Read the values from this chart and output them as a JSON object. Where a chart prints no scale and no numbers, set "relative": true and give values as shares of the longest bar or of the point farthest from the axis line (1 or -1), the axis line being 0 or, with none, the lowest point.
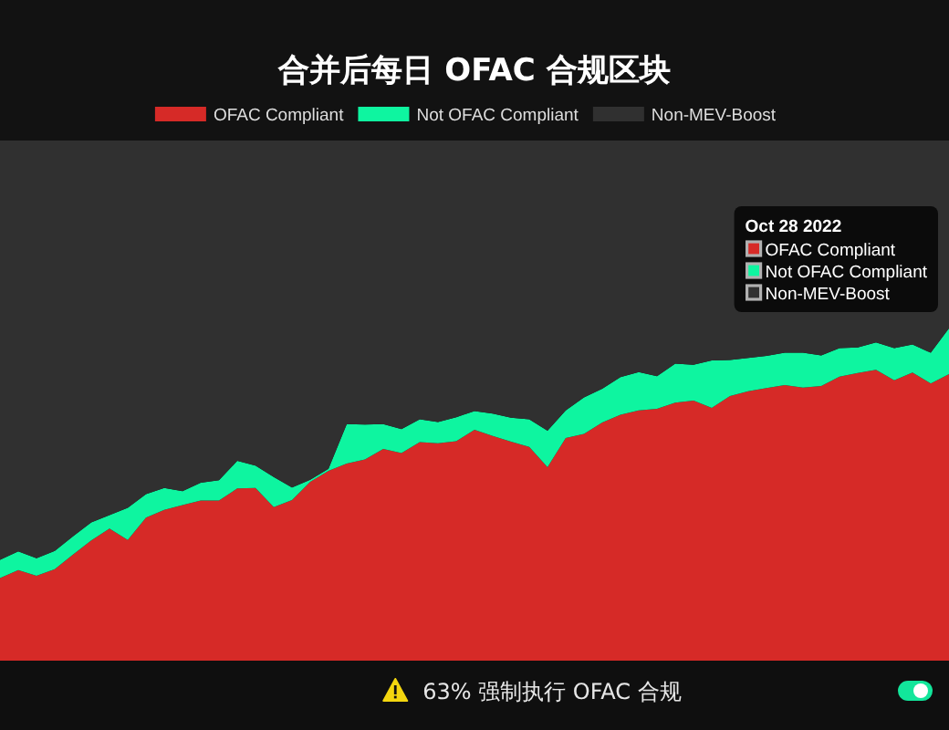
{
  "chart_data": {
    "type": "area",
    "title": "合并后每日 OFAC 合规区块",
    "categories": [
      null,
      null,
      null,
      null,
      null,
      null,
      null,
      null,
      null,
      null,
      null,
      null,
      null,
      null,
      null,
      null,
      null,
      null,
      null,
      null,
      null,
      null,
      null,
      null,
      null,
      null,
      null,
      null,
      null,
      null,
      null,
      null,
      null,
      null,
      null,
      null,
      null,
      null,
      null,
      null,
      null,
      null,
      null,
      null,
      null,
      null,
      null,
      null,
      null,
      null,
      null,
      null,
      null
    ],
    "stacked": true,
    "relative": true,
    "legend": "top",
    "series": [
      {
        "name": "OFAC Compliant",
        "color": "#d62a27",
        "values": [
          0.159,
          0.174,
          0.163,
          0.176,
          0.204,
          0.231,
          0.254,
          0.232,
          0.275,
          0.29,
          0.299,
          0.308,
          0.308,
          0.331,
          0.332,
          0.295,
          0.309,
          0.344,
          0.365,
          0.379,
          0.387,
          0.407,
          0.399,
          0.42,
          0.418,
          0.422,
          0.444,
          0.432,
          0.421,
          0.411,
          0.372,
          0.428,
          0.436,
          0.458,
          0.473,
          0.481,
          0.484,
          0.496,
          0.5,
          0.486,
          0.509,
          0.518,
          0.524,
          0.53,
          0.525,
          0.528,
          0.546,
          0.553,
          0.559,
          0.539,
          0.554,
          0.533,
          0.551
        ]
      },
      {
        "name": "Not OFAC Compliant",
        "color": "#0ef5a0",
        "values": [
          0.035,
          0.036,
          0.034,
          0.035,
          0.035,
          0.035,
          0.026,
          0.062,
          0.045,
          0.042,
          0.027,
          0.034,
          0.039,
          0.053,
          0.043,
          0.058,
          0.024,
          0.004,
          0.004,
          0.076,
          0.067,
          0.048,
          0.046,
          0.044,
          0.041,
          0.046,
          0.036,
          0.043,
          0.046,
          0.053,
          0.07,
          0.053,
          0.07,
          0.065,
          0.072,
          0.074,
          0.063,
          0.075,
          0.069,
          0.091,
          0.069,
          0.064,
          0.062,
          0.062,
          0.067,
          0.059,
          0.055,
          0.049,
          0.053,
          0.062,
          0.054,
          0.059,
          0.088
        ]
      },
      {
        "name": "Non-MEV-Boost",
        "color": "#303030",
        "values": [
          0.806,
          0.79,
          0.803,
          0.789,
          0.761,
          0.734,
          0.72,
          0.706,
          0.68,
          0.668,
          0.674,
          0.658,
          0.653,
          0.616,
          0.625,
          0.647,
          0.667,
          0.652,
          0.631,
          0.545,
          0.546,
          0.545,
          0.555,
          0.536,
          0.541,
          0.532,
          0.52,
          0.525,
          0.533,
          0.536,
          0.558,
          0.519,
          0.494,
          0.477,
          0.455,
          0.445,
          0.453,
          0.429,
          0.431,
          0.423,
          0.422,
          0.418,
          0.414,
          0.408,
          0.408,
          0.413,
          0.399,
          0.398,
          0.388,
          0.399,
          0.392,
          0.408,
          0.361
        ]
      }
    ],
    "annotations": [
      "Oct 28 2022",
      "63% 强制执行 OFAC 合规"
    ]
  }
}
